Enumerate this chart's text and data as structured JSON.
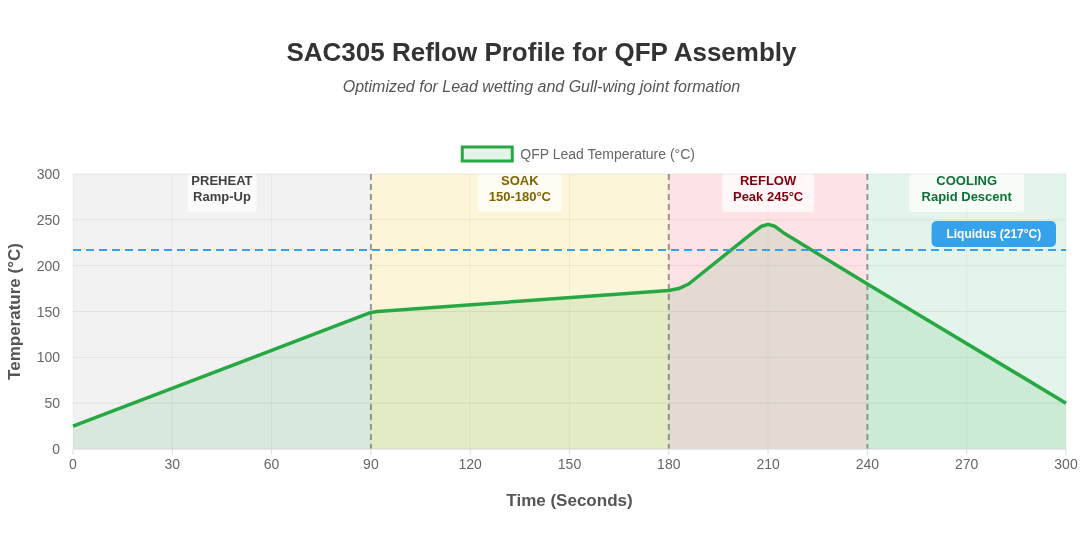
{
  "chart_data": {
    "type": "area",
    "title": "SAC305 Reflow Profile for QFP Assembly",
    "subtitle": "Optimized for Lead wetting and Gull-wing joint formation",
    "xlabel": "Time (Seconds)",
    "ylabel": "Temperature (°C)",
    "series": [
      {
        "name": "QFP Lead Temperature (°C)",
        "color": "#28a745",
        "x": [
          0,
          90,
          92,
          180,
          183,
          186,
          205,
          208,
          210,
          212,
          215,
          240,
          300
        ],
        "values": [
          25,
          149,
          150,
          173,
          175,
          180,
          235,
          243,
          245,
          243,
          235,
          180,
          50
        ]
      }
    ],
    "xlim": [
      0,
      300
    ],
    "xticks": [
      0,
      30,
      60,
      90,
      120,
      150,
      180,
      210,
      240,
      270,
      300
    ],
    "ylim": [
      0,
      300
    ],
    "yticks": [
      0,
      50,
      100,
      150,
      200,
      250,
      300
    ],
    "bands": [
      {
        "axis": "x",
        "from": 0,
        "to": 90,
        "label": "PREHEAT\nRamp-Up",
        "color": "#f2f2f2"
      },
      {
        "axis": "x",
        "from": 90,
        "to": 180,
        "label": "SOAK\n150-180°C",
        "color": "#fdf5d8"
      },
      {
        "axis": "x",
        "from": 180,
        "to": 240,
        "label": "REFLOW\nPeak 245°C",
        "color": "#fde3e6"
      },
      {
        "axis": "x",
        "from": 240,
        "to": 300,
        "label": "COOLING\nRapid Descent",
        "color": "#e3f5ea"
      }
    ],
    "ref_lines": [
      {
        "axis": "y",
        "value": 217,
        "label": "Liquidus (217°C)",
        "color": "#36a2eb",
        "line_style": "dashed"
      }
    ],
    "grid": true,
    "legend": "top",
    "marker": "none"
  }
}
